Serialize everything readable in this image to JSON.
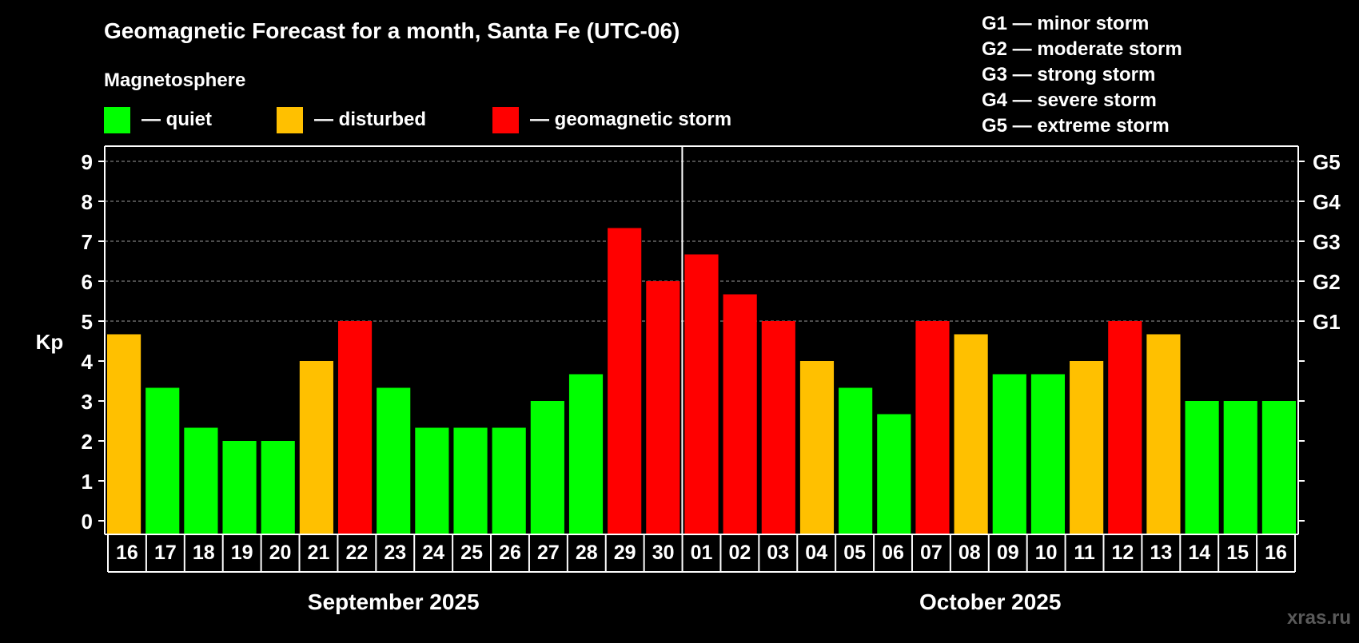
{
  "title": "Geomagnetic Forecast for a month, Santa Fe (UTC-06)",
  "legend": {
    "heading": "Magnetosphere",
    "items": [
      {
        "label": "— quiet",
        "color": "#00ff00"
      },
      {
        "label": "— disturbed",
        "color": "#ffc000"
      },
      {
        "label": "— geomagnetic storm",
        "color": "#ff0000"
      }
    ]
  },
  "storm_scale": [
    "G1 — minor storm",
    "G2 — moderate storm",
    "G3 — strong storm",
    "G4 — severe storm",
    "G5 — extreme storm"
  ],
  "credit": "xras.ru",
  "chart_data": {
    "type": "bar",
    "ylabel": "Kp",
    "ylim": [
      0,
      9
    ],
    "yticks": [
      0,
      1,
      2,
      3,
      4,
      5,
      6,
      7,
      8,
      9
    ],
    "right_axis_labels": [
      {
        "kp": 5,
        "label": "G1"
      },
      {
        "kp": 6,
        "label": "G2"
      },
      {
        "kp": 7,
        "label": "G3"
      },
      {
        "kp": 8,
        "label": "G4"
      },
      {
        "kp": 9,
        "label": "G5"
      }
    ],
    "categories": [
      "16",
      "17",
      "18",
      "19",
      "20",
      "21",
      "22",
      "23",
      "24",
      "25",
      "26",
      "27",
      "28",
      "29",
      "30",
      "01",
      "02",
      "03",
      "04",
      "05",
      "06",
      "07",
      "08",
      "09",
      "10",
      "11",
      "12",
      "13",
      "14",
      "15",
      "16"
    ],
    "values": [
      4.67,
      3.33,
      2.33,
      2,
      2,
      4,
      5,
      3.33,
      2.33,
      2.33,
      2.33,
      3,
      3.67,
      7.33,
      6,
      6.67,
      5.67,
      5,
      4,
      3.33,
      2.67,
      5,
      4.67,
      3.67,
      3.67,
      4,
      5,
      4.67,
      3,
      3,
      3
    ],
    "status": [
      "disturbed",
      "quiet",
      "quiet",
      "quiet",
      "quiet",
      "disturbed",
      "storm",
      "quiet",
      "quiet",
      "quiet",
      "quiet",
      "quiet",
      "quiet",
      "storm",
      "storm",
      "storm",
      "storm",
      "storm",
      "disturbed",
      "quiet",
      "quiet",
      "storm",
      "disturbed",
      "quiet",
      "quiet",
      "disturbed",
      "storm",
      "disturbed",
      "quiet",
      "quiet",
      "quiet"
    ],
    "months": [
      {
        "label": "September 2025",
        "first_index": 0,
        "last_index": 14
      },
      {
        "label": "October 2025",
        "first_index": 15,
        "last_index": 30
      }
    ],
    "colors": {
      "quiet": "#00ff00",
      "disturbed": "#ffc000",
      "storm": "#ff0000"
    },
    "grid": true
  }
}
